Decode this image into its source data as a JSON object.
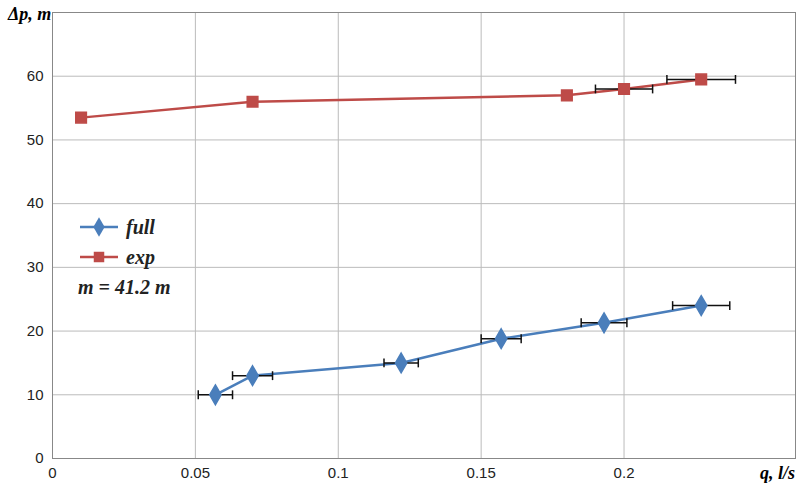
{
  "chart_data": {
    "type": "line",
    "x_label": "q, l/s",
    "y_label": "Δp, m",
    "xlim": [
      0,
      0.26
    ],
    "xticks": [
      0,
      0.05,
      0.1,
      0.15,
      0.2
    ],
    "ylim": [
      0,
      70
    ],
    "yticks": [
      0,
      10,
      20,
      30,
      40,
      50,
      60
    ],
    "grid": true,
    "legend": "left",
    "annotations": [
      {
        "text": "m = 41.2 m"
      }
    ],
    "series": [
      {
        "name": "full",
        "color": "#4a7ebb",
        "marker": "diamond",
        "x": [
          0.057,
          0.07,
          0.122,
          0.157,
          0.193,
          0.227
        ],
        "values": [
          10,
          13,
          15,
          18.8,
          21.3,
          24
        ],
        "x_error": [
          0.006,
          0.007,
          0.006,
          0.007,
          0.008,
          0.01
        ]
      },
      {
        "name": "exp",
        "color": "#be4b48",
        "marker": "square",
        "x": [
          0.01,
          0.07,
          0.18,
          0.2,
          0.227
        ],
        "values": [
          53.5,
          56,
          57,
          58,
          59.5
        ],
        "x_error": [
          null,
          null,
          null,
          0.01,
          0.012
        ]
      }
    ]
  }
}
